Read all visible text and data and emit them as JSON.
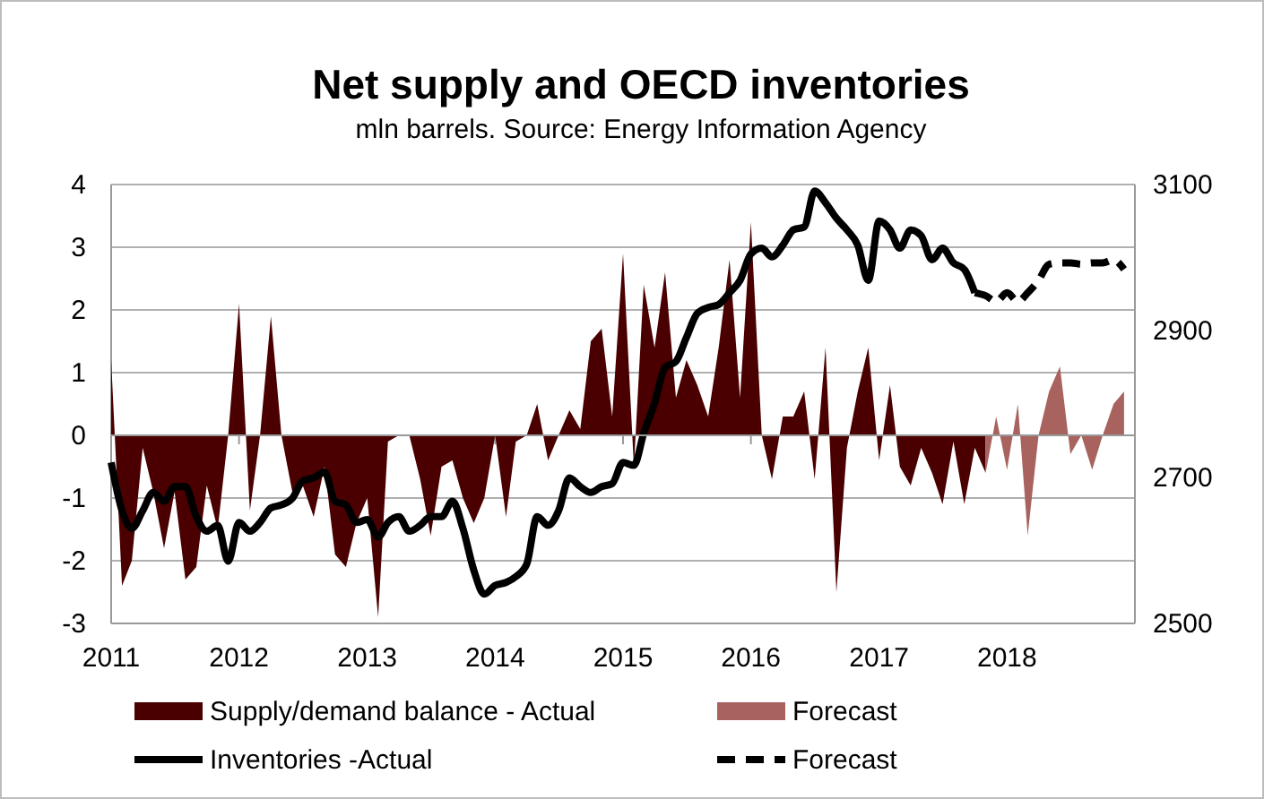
{
  "chart_data": {
    "type": "area",
    "title": "Net supply and OECD inventories",
    "subtitle": "mln barrels. Source: Energy Information Agency",
    "xlim": [
      "2011-01",
      "2019-01"
    ],
    "xticks": [
      "2011",
      "2012",
      "2013",
      "2014",
      "2015",
      "2016",
      "2017",
      "2018"
    ],
    "ylim": [
      -3,
      4
    ],
    "yticks": [
      -3,
      -2,
      -1,
      0,
      1,
      2,
      3,
      4
    ],
    "y2lim": [
      2500,
      3100
    ],
    "y2ticks": [
      2500,
      2700,
      2900,
      3100
    ],
    "grid": "y",
    "legend": "bottom",
    "series": [
      {
        "name": "Supply/demand balance - Actual",
        "color": "#4a0000",
        "x": [
          "2011-01",
          "2011-02",
          "2011-03",
          "2011-04",
          "2011-05",
          "2011-06",
          "2011-07",
          "2011-08",
          "2011-09",
          "2011-10",
          "2011-11",
          "2011-12",
          "2012-01",
          "2012-02",
          "2012-03",
          "2012-04",
          "2012-05",
          "2012-06",
          "2012-07",
          "2012-08",
          "2012-09",
          "2012-10",
          "2012-11",
          "2012-12",
          "2013-01",
          "2013-02",
          "2013-03",
          "2013-04",
          "2013-05",
          "2013-06",
          "2013-07",
          "2013-08",
          "2013-09",
          "2013-10",
          "2013-11",
          "2013-12",
          "2014-01",
          "2014-02",
          "2014-03",
          "2014-04",
          "2014-05",
          "2014-06",
          "2014-07",
          "2014-08",
          "2014-09",
          "2014-10",
          "2014-11",
          "2014-12",
          "2015-01",
          "2015-02",
          "2015-03",
          "2015-04",
          "2015-05",
          "2015-06",
          "2015-07",
          "2015-08",
          "2015-09",
          "2015-10",
          "2015-11",
          "2015-12",
          "2016-01",
          "2016-02",
          "2016-03",
          "2016-04",
          "2016-05",
          "2016-06",
          "2016-07",
          "2016-08",
          "2016-09",
          "2016-10",
          "2016-11",
          "2016-12",
          "2017-01",
          "2017-02",
          "2017-03",
          "2017-04",
          "2017-05",
          "2017-06",
          "2017-07",
          "2017-08",
          "2017-09",
          "2017-10",
          "2017-11"
        ],
        "values": [
          1.2,
          -2.4,
          -2.0,
          -0.2,
          -0.9,
          -1.8,
          -0.9,
          -2.3,
          -2.1,
          -0.8,
          -1.5,
          0,
          2.1,
          -1.2,
          0,
          1.9,
          0,
          -0.9,
          -0.8,
          -1.3,
          -0.5,
          -1.9,
          -2.1,
          -1.4,
          -1.0,
          -2.9,
          -0.1,
          0,
          0,
          -0.7,
          -1.6,
          -0.5,
          -0.4,
          -1.0,
          -1.4,
          -1.0,
          0,
          -1.3,
          -0.1,
          0,
          0.5,
          -0.4,
          0,
          0.4,
          0.1,
          1.5,
          1.7,
          0.3,
          2.9,
          -0.5,
          2.4,
          1.4,
          2.6,
          0.6,
          1.2,
          0.8,
          0.3,
          1.4,
          2.8,
          0.6,
          3.4,
          0,
          -0.7,
          0.3,
          0.3,
          0.7,
          -0.7,
          1.4,
          -2.5,
          -0.2,
          0.7,
          1.4,
          -0.4,
          0.8,
          -0.5,
          -0.8,
          -0.2,
          -0.6,
          -1.1,
          -0.1,
          -1.1,
          -0.2,
          -0.6
        ]
      },
      {
        "name": "Forecast",
        "color": "#a8635f",
        "x": [
          "2017-11",
          "2017-12",
          "2018-01",
          "2018-02",
          "2018-03",
          "2018-04",
          "2018-05",
          "2018-06",
          "2018-07",
          "2018-08",
          "2018-09",
          "2018-10",
          "2018-11",
          "2018-12"
        ],
        "values": [
          -0.6,
          0.3,
          -0.55,
          0.5,
          -1.6,
          0,
          0.7,
          1.1,
          -0.3,
          0,
          -0.55,
          0,
          0.5,
          0.7
        ]
      },
      {
        "name": "Inventories -Actual",
        "type": "line",
        "axis": "y2",
        "color": "#000000",
        "line_style": "solid",
        "x": [
          "2011-01",
          "2011-02",
          "2011-03",
          "2011-04",
          "2011-05",
          "2011-06",
          "2011-07",
          "2011-08",
          "2011-09",
          "2011-10",
          "2011-11",
          "2011-12",
          "2012-01",
          "2012-02",
          "2012-03",
          "2012-04",
          "2012-05",
          "2012-06",
          "2012-07",
          "2012-08",
          "2012-09",
          "2012-10",
          "2012-11",
          "2012-12",
          "2013-01",
          "2013-02",
          "2013-03",
          "2013-04",
          "2013-05",
          "2013-06",
          "2013-07",
          "2013-08",
          "2013-09",
          "2013-10",
          "2013-11",
          "2013-12",
          "2014-01",
          "2014-02",
          "2014-03",
          "2014-04",
          "2014-05",
          "2014-06",
          "2014-07",
          "2014-08",
          "2014-09",
          "2014-10",
          "2014-11",
          "2014-12",
          "2015-01",
          "2015-02",
          "2015-03",
          "2015-04",
          "2015-05",
          "2015-06",
          "2015-07",
          "2015-08",
          "2015-09",
          "2015-10",
          "2015-11",
          "2015-12",
          "2016-01",
          "2016-02",
          "2016-03",
          "2016-04",
          "2016-05",
          "2016-06",
          "2016-07",
          "2016-08",
          "2016-09",
          "2016-10",
          "2016-11",
          "2016-12",
          "2017-01",
          "2017-02",
          "2017-03",
          "2017-04",
          "2017-05",
          "2017-06",
          "2017-07",
          "2017-08",
          "2017-09",
          "2017-10"
        ],
        "values": [
          2720,
          2654,
          2630,
          2654,
          2679,
          2667,
          2687,
          2687,
          2646,
          2626,
          2634,
          2585,
          2638,
          2626,
          2638,
          2658,
          2662,
          2671,
          2695,
          2699,
          2707,
          2667,
          2662,
          2638,
          2642,
          2618,
          2638,
          2646,
          2626,
          2634,
          2646,
          2646,
          2667,
          2630,
          2573,
          2540,
          2552,
          2556,
          2564,
          2581,
          2646,
          2634,
          2654,
          2699,
          2687,
          2679,
          2687,
          2691,
          2720,
          2716,
          2760,
          2801,
          2850,
          2858,
          2891,
          2924,
          2932,
          2936,
          2952,
          2969,
          3005,
          3013,
          3001,
          3017,
          3038,
          3042,
          3091,
          3075,
          3054,
          3038,
          3017,
          2969,
          3050,
          3038,
          3013,
          3038,
          3030,
          2997,
          3013,
          2993,
          2984,
          2952
        ]
      },
      {
        "name": "Forecast",
        "type": "line",
        "axis": "y2",
        "color": "#000000",
        "line_style": "dashed",
        "x": [
          "2017-10",
          "2017-11",
          "2017-12",
          "2018-01",
          "2018-02",
          "2018-03",
          "2018-04",
          "2018-05",
          "2018-06",
          "2018-07",
          "2018-08",
          "2018-09",
          "2018-10",
          "2018-11",
          "2018-12"
        ],
        "values": [
          2952,
          2948,
          2940,
          2952,
          2940,
          2952,
          2969,
          2991,
          2993,
          2993,
          2991,
          2993,
          2993,
          2997,
          2984
        ]
      }
    ]
  }
}
